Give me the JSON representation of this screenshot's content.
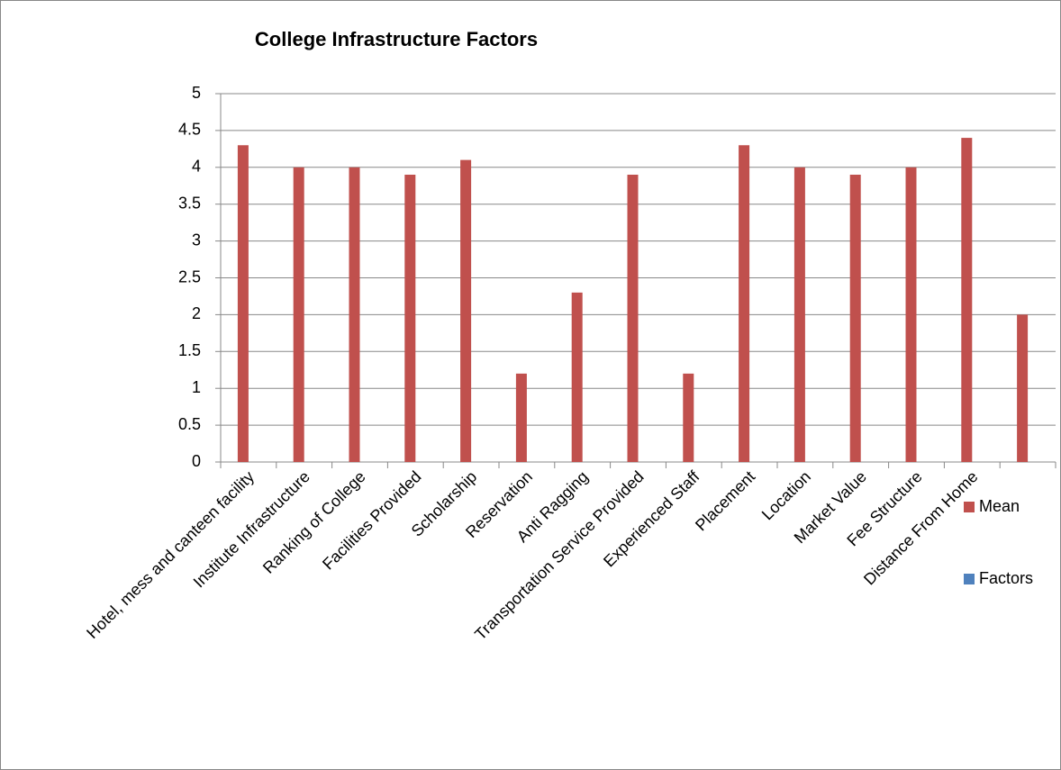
{
  "chart_data": {
    "type": "bar",
    "title": "College Infrastructure Factors",
    "categories": [
      "Hotel, mess and canteen facility",
      "Institute Infrastructure",
      "Ranking of College",
      "Facilities Provided",
      "Scholarship",
      "Reservation",
      "Anti Ragging",
      "Transportation Service Provided",
      "Experienced Staff",
      "Placement",
      "Location",
      "Market Value",
      "Fee Structure",
      "Distance From Home",
      null
    ],
    "series": [
      {
        "name": "Mean",
        "color": "#c0504d",
        "values": [
          4.3,
          4.0,
          4.0,
          3.9,
          4.1,
          1.2,
          2.3,
          3.9,
          1.2,
          4.3,
          4.0,
          3.9,
          4.0,
          4.4,
          2.0
        ]
      },
      {
        "name": "Factors",
        "color": "#4f81bd",
        "values": [
          null,
          null,
          null,
          null,
          null,
          null,
          null,
          null,
          null,
          null,
          null,
          null,
          null,
          null,
          null
        ]
      }
    ],
    "ylim": [
      0,
      5
    ],
    "yticks": [
      0,
      0.5,
      1,
      1.5,
      2,
      2.5,
      3,
      3.5,
      4,
      4.5,
      5
    ],
    "grid": true,
    "legend": "right"
  }
}
